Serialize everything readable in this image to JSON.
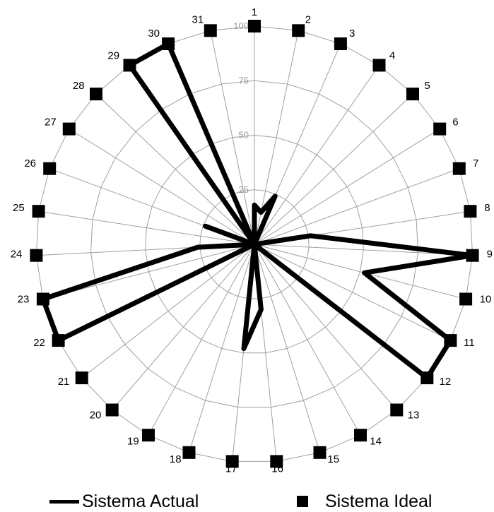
{
  "chart_data": {
    "type": "radar",
    "title": "",
    "categories": [
      "1",
      "2",
      "3",
      "4",
      "5",
      "6",
      "7",
      "8",
      "9",
      "10",
      "11",
      "12",
      "13",
      "14",
      "15",
      "16",
      "17",
      "18",
      "19",
      "20",
      "21",
      "22",
      "23",
      "24",
      "25",
      "26",
      "27",
      "28",
      "29",
      "30",
      "31"
    ],
    "rlim": [
      0,
      100
    ],
    "rticks": [
      0,
      25,
      50,
      75,
      100
    ],
    "rtick_labels": [
      "0",
      "25",
      "50",
      "75",
      "100"
    ],
    "grid": true,
    "legend_position": "bottom",
    "series": [
      {
        "name": "Sistema Actual",
        "style": "line",
        "color": "#000000",
        "values": [
          18,
          15,
          24,
          0,
          0,
          0,
          0,
          26,
          100,
          52,
          100,
          100,
          0,
          0,
          0,
          30,
          48,
          0,
          0,
          0,
          0,
          100,
          100,
          26,
          0,
          24,
          0,
          0,
          100,
          100,
          0
        ]
      },
      {
        "name": "Sistema Ideal",
        "style": "marker",
        "color": "#000000",
        "values": [
          100,
          100,
          100,
          100,
          100,
          100,
          100,
          100,
          100,
          100,
          100,
          100,
          100,
          100,
          100,
          100,
          100,
          100,
          100,
          100,
          100,
          100,
          100,
          100,
          100,
          100,
          100,
          100,
          100,
          100,
          100
        ]
      }
    ]
  }
}
